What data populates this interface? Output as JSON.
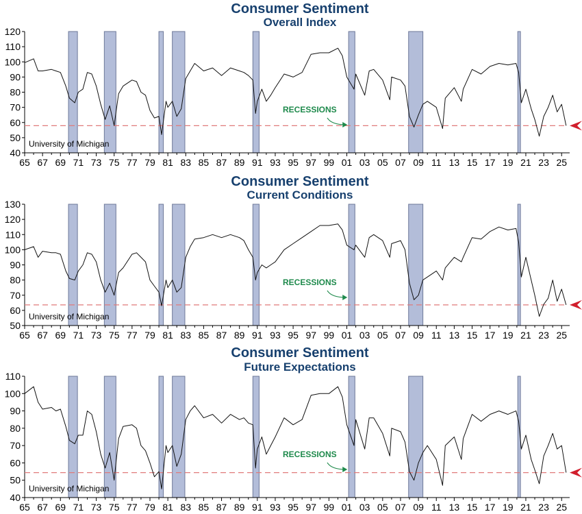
{
  "chart_data": [
    {
      "type": "line",
      "title": "Consumer Sentiment",
      "subtitle": "Overall Index",
      "source": "University of Michigan",
      "ylim": [
        40,
        120
      ],
      "yticks": [
        40,
        50,
        60,
        70,
        80,
        90,
        100,
        110,
        120
      ],
      "xlim": [
        1965,
        2025.9
      ],
      "xtick_labels": [
        "65",
        "67",
        "69",
        "71",
        "73",
        "75",
        "77",
        "79",
        "81",
        "83",
        "85",
        "87",
        "89",
        "91",
        "93",
        "95",
        "97",
        "99",
        "01",
        "03",
        "05",
        "07",
        "09",
        "11",
        "13",
        "15",
        "17",
        "19",
        "21",
        "23",
        "25"
      ],
      "reference_line": 57.9,
      "recession_label": "RECESSIONS",
      "recessions": [
        [
          1969.9,
          1970.9
        ],
        [
          1973.9,
          1975.2
        ],
        [
          1980.0,
          1980.5
        ],
        [
          1981.5,
          1982.9
        ],
        [
          1990.5,
          1991.2
        ],
        [
          2001.2,
          2001.9
        ],
        [
          2007.9,
          2009.5
        ],
        [
          2020.1,
          2020.4
        ]
      ],
      "series": [
        {
          "x": [
            1965.0,
            1966.0,
            1966.5,
            1967.0,
            1968.0,
            1968.5,
            1969.0,
            1969.6,
            1970.0,
            1970.6,
            1971.0,
            1971.5,
            1972.0,
            1972.5,
            1973.0,
            1973.5,
            1974.0,
            1974.5,
            1975.0,
            1975.5,
            1976.0,
            1977.0,
            1977.5,
            1978.0,
            1978.5,
            1979.0,
            1979.5,
            1980.0,
            1980.3,
            1980.8,
            1981.0,
            1981.5,
            1982.0,
            1982.5,
            1983.0,
            1983.5,
            1984.0,
            1985.0,
            1986.0,
            1987.0,
            1988.0,
            1989.0,
            1989.5,
            1990.0,
            1990.5,
            1990.8,
            1991.0,
            1991.5,
            1992.0,
            1992.5,
            1993.0,
            1994.0,
            1995.0,
            1996.0,
            1997.0,
            1998.0,
            1999.0,
            2000.0,
            2000.5,
            2001.0,
            2001.8,
            2002.0,
            2003.0,
            2003.5,
            2004.0,
            2005.0,
            2005.8,
            2006.0,
            2007.0,
            2007.5,
            2008.0,
            2008.5,
            2009.0,
            2009.5,
            2010.0,
            2011.0,
            2011.7,
            2012.0,
            2013.0,
            2013.8,
            2014.0,
            2015.0,
            2016.0,
            2017.0,
            2018.0,
            2019.0,
            2019.9,
            2020.2,
            2020.5,
            2021.0,
            2021.6,
            2022.0,
            2022.5,
            2023.0,
            2023.5,
            2024.0,
            2024.5,
            2025.0,
            2025.5
          ],
          "values": [
            99.5,
            102.0,
            94.0,
            94.0,
            95.0,
            94.0,
            93.0,
            84.0,
            76.0,
            73.0,
            80.0,
            82.0,
            93.0,
            92.0,
            84.0,
            72.0,
            62.0,
            71.0,
            58.0,
            79.0,
            84.0,
            88.0,
            87.0,
            80.0,
            78.0,
            68.0,
            63.0,
            64.0,
            52.0,
            74.0,
            70.0,
            74.0,
            64.0,
            69.0,
            89.0,
            94.0,
            99.0,
            94.0,
            96.0,
            91.0,
            96.0,
            94.0,
            93.0,
            91.0,
            88.0,
            66.0,
            74.0,
            82.0,
            74.0,
            78.0,
            83.0,
            92.0,
            90.0,
            93.0,
            105.0,
            106.0,
            106.0,
            109.0,
            104.0,
            90.0,
            82.0,
            92.0,
            78.0,
            94.0,
            95.0,
            88.0,
            75.0,
            90.0,
            88.0,
            84.0,
            64.0,
            57.0,
            65.0,
            72.0,
            74.0,
            70.0,
            56.0,
            76.0,
            83.0,
            74.0,
            82.0,
            95.0,
            92.0,
            97.0,
            99.0,
            98.0,
            99.0,
            93.0,
            73.0,
            82.0,
            69.0,
            62.0,
            51.0,
            64.0,
            70.0,
            78.0,
            67.0,
            72.0,
            57.9
          ]
        }
      ]
    },
    {
      "type": "line",
      "title": "Consumer Sentiment",
      "subtitle": "Current Conditions",
      "source": "University of Michigan",
      "ylim": [
        50,
        130
      ],
      "yticks": [
        50,
        60,
        70,
        80,
        90,
        100,
        110,
        120,
        130
      ],
      "xlim": [
        1965,
        2025.9
      ],
      "xtick_labels": [
        "65",
        "67",
        "69",
        "71",
        "73",
        "75",
        "77",
        "79",
        "81",
        "83",
        "85",
        "87",
        "89",
        "91",
        "93",
        "95",
        "97",
        "99",
        "01",
        "03",
        "05",
        "07",
        "09",
        "11",
        "13",
        "15",
        "17",
        "19",
        "21",
        "23",
        "25"
      ],
      "reference_line": 63.6,
      "recession_label": "RECESSIONS",
      "recessions": [
        [
          1969.9,
          1970.9
        ],
        [
          1973.9,
          1975.2
        ],
        [
          1980.0,
          1980.5
        ],
        [
          1981.5,
          1982.9
        ],
        [
          1990.5,
          1991.2
        ],
        [
          2001.2,
          2001.9
        ],
        [
          2007.9,
          2009.5
        ],
        [
          2020.1,
          2020.4
        ]
      ],
      "series": [
        {
          "x": [
            1965.0,
            1966.0,
            1966.5,
            1967.0,
            1968.0,
            1968.5,
            1969.0,
            1969.6,
            1970.0,
            1970.6,
            1971.0,
            1971.5,
            1972.0,
            1972.5,
            1973.0,
            1973.5,
            1974.0,
            1974.5,
            1975.0,
            1975.5,
            1976.0,
            1977.0,
            1977.5,
            1978.0,
            1978.5,
            1979.0,
            1979.5,
            1980.0,
            1980.3,
            1980.8,
            1981.0,
            1981.5,
            1982.0,
            1982.5,
            1983.0,
            1983.5,
            1984.0,
            1985.0,
            1986.0,
            1987.0,
            1988.0,
            1989.0,
            1989.5,
            1990.0,
            1990.5,
            1990.8,
            1991.0,
            1991.5,
            1992.0,
            1992.5,
            1993.0,
            1994.0,
            1995.0,
            1996.0,
            1997.0,
            1998.0,
            1999.0,
            2000.0,
            2000.5,
            2001.0,
            2001.8,
            2002.0,
            2003.0,
            2003.5,
            2004.0,
            2005.0,
            2005.8,
            2006.0,
            2007.0,
            2007.5,
            2008.0,
            2008.5,
            2009.0,
            2009.5,
            2010.0,
            2011.0,
            2011.7,
            2012.0,
            2013.0,
            2013.8,
            2014.0,
            2015.0,
            2016.0,
            2017.0,
            2018.0,
            2019.0,
            2019.9,
            2020.2,
            2020.5,
            2021.0,
            2021.6,
            2022.0,
            2022.5,
            2023.0,
            2023.5,
            2024.0,
            2024.5,
            2025.0,
            2025.5
          ],
          "values": [
            100.0,
            102.0,
            95.0,
            99.0,
            98.0,
            98.0,
            97.0,
            86.0,
            81.0,
            80.0,
            86.0,
            90.0,
            98.0,
            97.0,
            92.0,
            80.0,
            72.0,
            78.0,
            70.0,
            85.0,
            88.0,
            97.0,
            98.0,
            95.0,
            92.0,
            80.0,
            76.0,
            72.0,
            63.0,
            80.0,
            75.0,
            80.0,
            72.0,
            75.0,
            95.0,
            102.0,
            107.0,
            108.0,
            110.0,
            108.0,
            110.0,
            108.0,
            106.0,
            100.0,
            95.0,
            80.0,
            85.0,
            90.0,
            88.0,
            90.0,
            92.0,
            100.0,
            104.0,
            108.0,
            112.0,
            116.0,
            116.0,
            117.0,
            113.0,
            103.0,
            100.0,
            103.0,
            95.0,
            108.0,
            110.0,
            106.0,
            95.0,
            104.0,
            106.0,
            100.0,
            78.0,
            67.0,
            70.0,
            80.0,
            82.0,
            86.0,
            80.0,
            88.0,
            95.0,
            92.0,
            95.0,
            108.0,
            107.0,
            112.0,
            115.0,
            113.0,
            114.0,
            105.0,
            82.0,
            95.0,
            80.0,
            70.0,
            56.0,
            64.0,
            68.0,
            80.0,
            66.0,
            74.0,
            63.6
          ]
        }
      ]
    },
    {
      "type": "line",
      "title": "Consumer Sentiment",
      "subtitle": "Future Expectations",
      "source": "University of Michigan",
      "ylim": [
        40,
        110
      ],
      "yticks": [
        40,
        50,
        60,
        70,
        80,
        90,
        100,
        110
      ],
      "xlim": [
        1965,
        2025.9
      ],
      "xtick_labels": [
        "65",
        "67",
        "69",
        "71",
        "73",
        "75",
        "77",
        "79",
        "81",
        "83",
        "85",
        "87",
        "89",
        "91",
        "93",
        "95",
        "97",
        "99",
        "01",
        "03",
        "05",
        "07",
        "09",
        "11",
        "13",
        "15",
        "17",
        "19",
        "21",
        "23",
        "25"
      ],
      "reference_line": 54.4,
      "recession_label": "RECESSIONS",
      "recessions": [
        [
          1969.9,
          1970.9
        ],
        [
          1973.9,
          1975.2
        ],
        [
          1980.0,
          1980.5
        ],
        [
          1981.5,
          1982.9
        ],
        [
          1990.5,
          1991.2
        ],
        [
          2001.2,
          2001.9
        ],
        [
          2007.9,
          2009.5
        ],
        [
          2020.1,
          2020.4
        ]
      ],
      "series": [
        {
          "x": [
            1965.0,
            1966.0,
            1966.5,
            1967.0,
            1968.0,
            1968.5,
            1969.0,
            1969.6,
            1970.0,
            1970.6,
            1971.0,
            1971.5,
            1972.0,
            1972.5,
            1973.0,
            1973.5,
            1974.0,
            1974.5,
            1975.0,
            1975.5,
            1976.0,
            1977.0,
            1977.5,
            1978.0,
            1978.5,
            1979.0,
            1979.5,
            1980.0,
            1980.3,
            1980.8,
            1981.0,
            1981.5,
            1982.0,
            1982.5,
            1983.0,
            1983.5,
            1984.0,
            1985.0,
            1986.0,
            1987.0,
            1988.0,
            1989.0,
            1989.5,
            1990.0,
            1990.5,
            1990.8,
            1991.0,
            1991.5,
            1992.0,
            1992.5,
            1993.0,
            1994.0,
            1995.0,
            1996.0,
            1997.0,
            1998.0,
            1999.0,
            2000.0,
            2000.5,
            2001.0,
            2001.8,
            2002.0,
            2003.0,
            2003.5,
            2004.0,
            2005.0,
            2005.8,
            2006.0,
            2007.0,
            2007.5,
            2008.0,
            2008.5,
            2009.0,
            2009.5,
            2010.0,
            2011.0,
            2011.7,
            2012.0,
            2013.0,
            2013.8,
            2014.0,
            2015.0,
            2016.0,
            2017.0,
            2018.0,
            2019.0,
            2019.9,
            2020.2,
            2020.5,
            2021.0,
            2021.6,
            2022.0,
            2022.5,
            2023.0,
            2023.5,
            2024.0,
            2024.5,
            2025.0,
            2025.5
          ],
          "values": [
            100.0,
            104.0,
            95.0,
            91.0,
            92.0,
            90.0,
            91.0,
            81.0,
            73.0,
            71.0,
            76.0,
            76.0,
            90.0,
            88.0,
            78.0,
            65.0,
            57.0,
            66.0,
            50.0,
            74.0,
            81.0,
            82.0,
            80.0,
            70.0,
            67.0,
            60.0,
            52.0,
            55.0,
            45.0,
            70.0,
            66.0,
            70.0,
            58.0,
            65.0,
            85.0,
            90.0,
            93.0,
            86.0,
            88.0,
            83.0,
            88.0,
            85.0,
            86.0,
            83.0,
            82.0,
            57.0,
            68.0,
            75.0,
            65.0,
            70.0,
            75.0,
            86.0,
            82.0,
            85.0,
            99.0,
            100.0,
            100.0,
            104.0,
            98.0,
            82.0,
            70.0,
            85.0,
            68.0,
            86.0,
            86.0,
            77.0,
            64.0,
            80.0,
            78.0,
            72.0,
            55.0,
            50.0,
            60.0,
            66.0,
            70.0,
            62.0,
            47.0,
            70.0,
            75.0,
            62.0,
            74.0,
            88.0,
            84.0,
            88.0,
            90.0,
            88.0,
            90.0,
            84.0,
            68.0,
            76.0,
            62.0,
            56.0,
            48.0,
            64.0,
            70.0,
            77.0,
            68.0,
            70.0,
            54.4
          ]
        }
      ]
    }
  ],
  "colors": {
    "title": "#17406e",
    "recession_fill": "#b3bdd9",
    "recession_stroke": "#6d7898",
    "line": "#111111",
    "reference": "#e07a7a",
    "marker": "#d11f2d",
    "recession_label": "#1f8a4c"
  }
}
